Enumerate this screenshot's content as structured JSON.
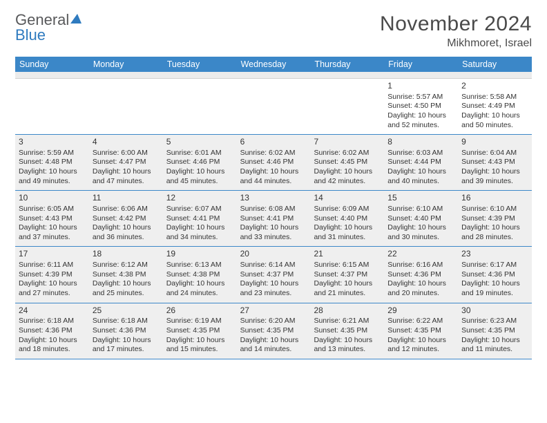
{
  "brand": {
    "part1": "General",
    "part2": "Blue"
  },
  "title": "November 2024",
  "location": "Mikhmoret, Israel",
  "colors": {
    "header_bg": "#3b87c8",
    "header_text": "#ffffff",
    "week_border": "#3b87c8",
    "shaded_bg": "#efefef",
    "text": "#333333",
    "brand_gray": "#58595b",
    "brand_blue": "#2f7bbf"
  },
  "dow": [
    "Sunday",
    "Monday",
    "Tuesday",
    "Wednesday",
    "Thursday",
    "Friday",
    "Saturday"
  ],
  "weeks": [
    {
      "shaded": false,
      "days": [
        null,
        null,
        null,
        null,
        null,
        {
          "n": "1",
          "sr": "Sunrise: 5:57 AM",
          "ss": "Sunset: 4:50 PM",
          "dl": "Daylight: 10 hours and 52 minutes."
        },
        {
          "n": "2",
          "sr": "Sunrise: 5:58 AM",
          "ss": "Sunset: 4:49 PM",
          "dl": "Daylight: 10 hours and 50 minutes."
        }
      ]
    },
    {
      "shaded": true,
      "days": [
        {
          "n": "3",
          "sr": "Sunrise: 5:59 AM",
          "ss": "Sunset: 4:48 PM",
          "dl": "Daylight: 10 hours and 49 minutes."
        },
        {
          "n": "4",
          "sr": "Sunrise: 6:00 AM",
          "ss": "Sunset: 4:47 PM",
          "dl": "Daylight: 10 hours and 47 minutes."
        },
        {
          "n": "5",
          "sr": "Sunrise: 6:01 AM",
          "ss": "Sunset: 4:46 PM",
          "dl": "Daylight: 10 hours and 45 minutes."
        },
        {
          "n": "6",
          "sr": "Sunrise: 6:02 AM",
          "ss": "Sunset: 4:46 PM",
          "dl": "Daylight: 10 hours and 44 minutes."
        },
        {
          "n": "7",
          "sr": "Sunrise: 6:02 AM",
          "ss": "Sunset: 4:45 PM",
          "dl": "Daylight: 10 hours and 42 minutes."
        },
        {
          "n": "8",
          "sr": "Sunrise: 6:03 AM",
          "ss": "Sunset: 4:44 PM",
          "dl": "Daylight: 10 hours and 40 minutes."
        },
        {
          "n": "9",
          "sr": "Sunrise: 6:04 AM",
          "ss": "Sunset: 4:43 PM",
          "dl": "Daylight: 10 hours and 39 minutes."
        }
      ]
    },
    {
      "shaded": true,
      "days": [
        {
          "n": "10",
          "sr": "Sunrise: 6:05 AM",
          "ss": "Sunset: 4:43 PM",
          "dl": "Daylight: 10 hours and 37 minutes."
        },
        {
          "n": "11",
          "sr": "Sunrise: 6:06 AM",
          "ss": "Sunset: 4:42 PM",
          "dl": "Daylight: 10 hours and 36 minutes."
        },
        {
          "n": "12",
          "sr": "Sunrise: 6:07 AM",
          "ss": "Sunset: 4:41 PM",
          "dl": "Daylight: 10 hours and 34 minutes."
        },
        {
          "n": "13",
          "sr": "Sunrise: 6:08 AM",
          "ss": "Sunset: 4:41 PM",
          "dl": "Daylight: 10 hours and 33 minutes."
        },
        {
          "n": "14",
          "sr": "Sunrise: 6:09 AM",
          "ss": "Sunset: 4:40 PM",
          "dl": "Daylight: 10 hours and 31 minutes."
        },
        {
          "n": "15",
          "sr": "Sunrise: 6:10 AM",
          "ss": "Sunset: 4:40 PM",
          "dl": "Daylight: 10 hours and 30 minutes."
        },
        {
          "n": "16",
          "sr": "Sunrise: 6:10 AM",
          "ss": "Sunset: 4:39 PM",
          "dl": "Daylight: 10 hours and 28 minutes."
        }
      ]
    },
    {
      "shaded": true,
      "days": [
        {
          "n": "17",
          "sr": "Sunrise: 6:11 AM",
          "ss": "Sunset: 4:39 PM",
          "dl": "Daylight: 10 hours and 27 minutes."
        },
        {
          "n": "18",
          "sr": "Sunrise: 6:12 AM",
          "ss": "Sunset: 4:38 PM",
          "dl": "Daylight: 10 hours and 25 minutes."
        },
        {
          "n": "19",
          "sr": "Sunrise: 6:13 AM",
          "ss": "Sunset: 4:38 PM",
          "dl": "Daylight: 10 hours and 24 minutes."
        },
        {
          "n": "20",
          "sr": "Sunrise: 6:14 AM",
          "ss": "Sunset: 4:37 PM",
          "dl": "Daylight: 10 hours and 23 minutes."
        },
        {
          "n": "21",
          "sr": "Sunrise: 6:15 AM",
          "ss": "Sunset: 4:37 PM",
          "dl": "Daylight: 10 hours and 21 minutes."
        },
        {
          "n": "22",
          "sr": "Sunrise: 6:16 AM",
          "ss": "Sunset: 4:36 PM",
          "dl": "Daylight: 10 hours and 20 minutes."
        },
        {
          "n": "23",
          "sr": "Sunrise: 6:17 AM",
          "ss": "Sunset: 4:36 PM",
          "dl": "Daylight: 10 hours and 19 minutes."
        }
      ]
    },
    {
      "shaded": true,
      "days": [
        {
          "n": "24",
          "sr": "Sunrise: 6:18 AM",
          "ss": "Sunset: 4:36 PM",
          "dl": "Daylight: 10 hours and 18 minutes."
        },
        {
          "n": "25",
          "sr": "Sunrise: 6:18 AM",
          "ss": "Sunset: 4:36 PM",
          "dl": "Daylight: 10 hours and 17 minutes."
        },
        {
          "n": "26",
          "sr": "Sunrise: 6:19 AM",
          "ss": "Sunset: 4:35 PM",
          "dl": "Daylight: 10 hours and 15 minutes."
        },
        {
          "n": "27",
          "sr": "Sunrise: 6:20 AM",
          "ss": "Sunset: 4:35 PM",
          "dl": "Daylight: 10 hours and 14 minutes."
        },
        {
          "n": "28",
          "sr": "Sunrise: 6:21 AM",
          "ss": "Sunset: 4:35 PM",
          "dl": "Daylight: 10 hours and 13 minutes."
        },
        {
          "n": "29",
          "sr": "Sunrise: 6:22 AM",
          "ss": "Sunset: 4:35 PM",
          "dl": "Daylight: 10 hours and 12 minutes."
        },
        {
          "n": "30",
          "sr": "Sunrise: 6:23 AM",
          "ss": "Sunset: 4:35 PM",
          "dl": "Daylight: 10 hours and 11 minutes."
        }
      ]
    }
  ]
}
